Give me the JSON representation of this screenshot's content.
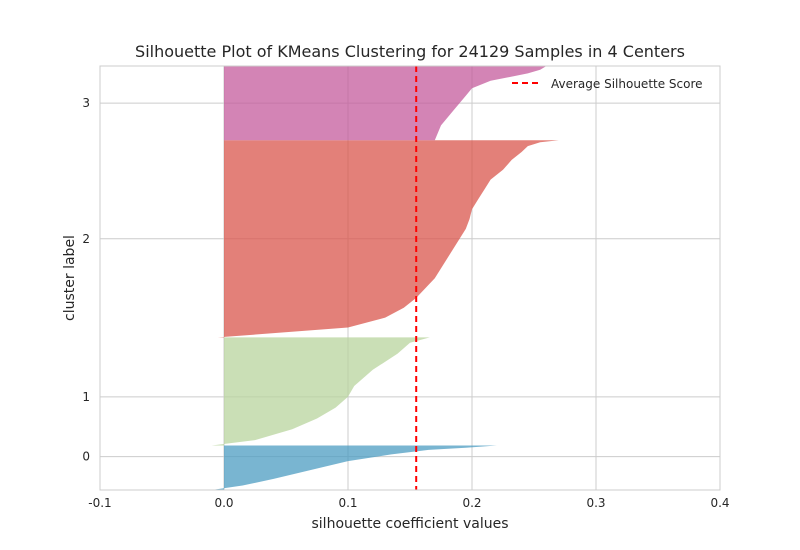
{
  "chart_data": {
    "type": "area",
    "title": "Silhouette Plot of KMeans Clustering for 24129 Samples in 4 Centers",
    "xlabel": "silhouette coefficient values",
    "ylabel": "cluster label",
    "xlim": [
      -0.1,
      0.4
    ],
    "x_ticks": [
      "-0.1",
      "0.0",
      "0.1",
      "0.2",
      "0.3",
      "0.4"
    ],
    "x_tick_values": [
      -0.1,
      0.0,
      0.1,
      0.2,
      0.3,
      0.4
    ],
    "y_ticks": [
      "0",
      "1",
      "2",
      "3"
    ],
    "grid": true,
    "legend_position": "top-right",
    "average_silhouette_score": 0.155,
    "average_line_label": "Average Silhouette Score",
    "average_line_color": "#ff0000",
    "clusters": [
      {
        "label": "0",
        "color": "#4c9cc2",
        "share": 0.105,
        "profile": [
          [
            0,
            0.22
          ],
          [
            0.05,
            0.195
          ],
          [
            0.1,
            0.165
          ],
          [
            0.2,
            0.135
          ],
          [
            0.35,
            0.1
          ],
          [
            0.55,
            0.07
          ],
          [
            0.75,
            0.04
          ],
          [
            0.9,
            0.015
          ],
          [
            1,
            -0.01
          ]
        ]
      },
      {
        "label": "1",
        "color": "#b8d49d",
        "share": 0.255,
        "profile": [
          [
            0,
            0.166
          ],
          [
            0.05,
            0.15
          ],
          [
            0.15,
            0.14
          ],
          [
            0.3,
            0.12
          ],
          [
            0.45,
            0.105
          ],
          [
            0.55,
            0.1
          ],
          [
            0.65,
            0.09
          ],
          [
            0.75,
            0.075
          ],
          [
            0.85,
            0.055
          ],
          [
            0.95,
            0.025
          ],
          [
            1,
            -0.01
          ]
        ]
      },
      {
        "label": "2",
        "color": "#d9554c",
        "share": 0.465,
        "profile": [
          [
            0,
            0.27
          ],
          [
            0.01,
            0.255
          ],
          [
            0.03,
            0.245
          ],
          [
            0.06,
            0.24
          ],
          [
            0.1,
            0.232
          ],
          [
            0.15,
            0.225
          ],
          [
            0.2,
            0.215
          ],
          [
            0.25,
            0.21
          ],
          [
            0.3,
            0.205
          ],
          [
            0.35,
            0.2
          ],
          [
            0.4,
            0.198
          ],
          [
            0.45,
            0.195
          ],
          [
            0.5,
            0.19
          ],
          [
            0.6,
            0.18
          ],
          [
            0.7,
            0.17
          ],
          [
            0.8,
            0.155
          ],
          [
            0.85,
            0.145
          ],
          [
            0.9,
            0.13
          ],
          [
            0.95,
            0.1
          ],
          [
            1,
            -0.005
          ]
        ]
      },
      {
        "label": "3",
        "color": "#c45b9c",
        "share": 0.175,
        "profile": [
          [
            0,
            0.26
          ],
          [
            0.05,
            0.255
          ],
          [
            0.1,
            0.245
          ],
          [
            0.2,
            0.215
          ],
          [
            0.3,
            0.2
          ],
          [
            0.4,
            0.195
          ],
          [
            0.5,
            0.19
          ],
          [
            0.6,
            0.185
          ],
          [
            0.8,
            0.175
          ],
          [
            1,
            0.17
          ]
        ]
      }
    ]
  }
}
